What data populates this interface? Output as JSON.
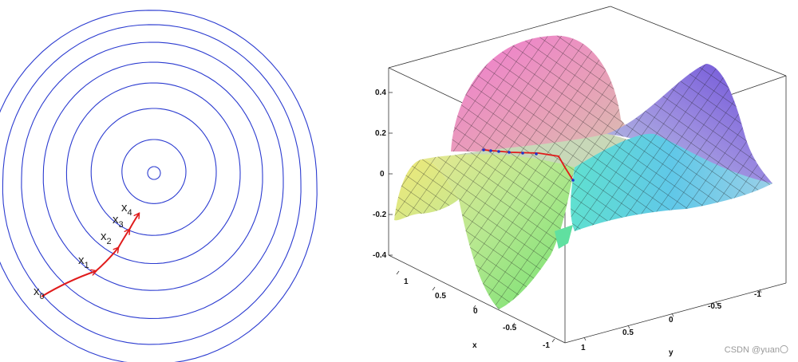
{
  "left": {
    "contour_color": "#2b3bd0",
    "path_color": "#e01b1b",
    "points": [
      {
        "base": "x",
        "sub": "0"
      },
      {
        "base": "x",
        "sub": "1"
      },
      {
        "base": "x",
        "sub": "2"
      },
      {
        "base": "x",
        "sub": "3"
      },
      {
        "base": "x",
        "sub": "4"
      }
    ]
  },
  "right": {
    "z_ticks": [
      "0.4",
      "0.2",
      "0",
      "-0.2",
      "-0.4"
    ],
    "x_ticks": [
      "1",
      "0.5",
      "0",
      "-0.5",
      "-1"
    ],
    "y_ticks": [
      "1",
      "0.5",
      "0",
      "-0.5",
      "-1"
    ],
    "x_label": "x",
    "y_label": "y",
    "path_color": "#e01b1b",
    "dot_color": "#2233cc"
  },
  "watermark": "CSDN @yuan〇"
}
